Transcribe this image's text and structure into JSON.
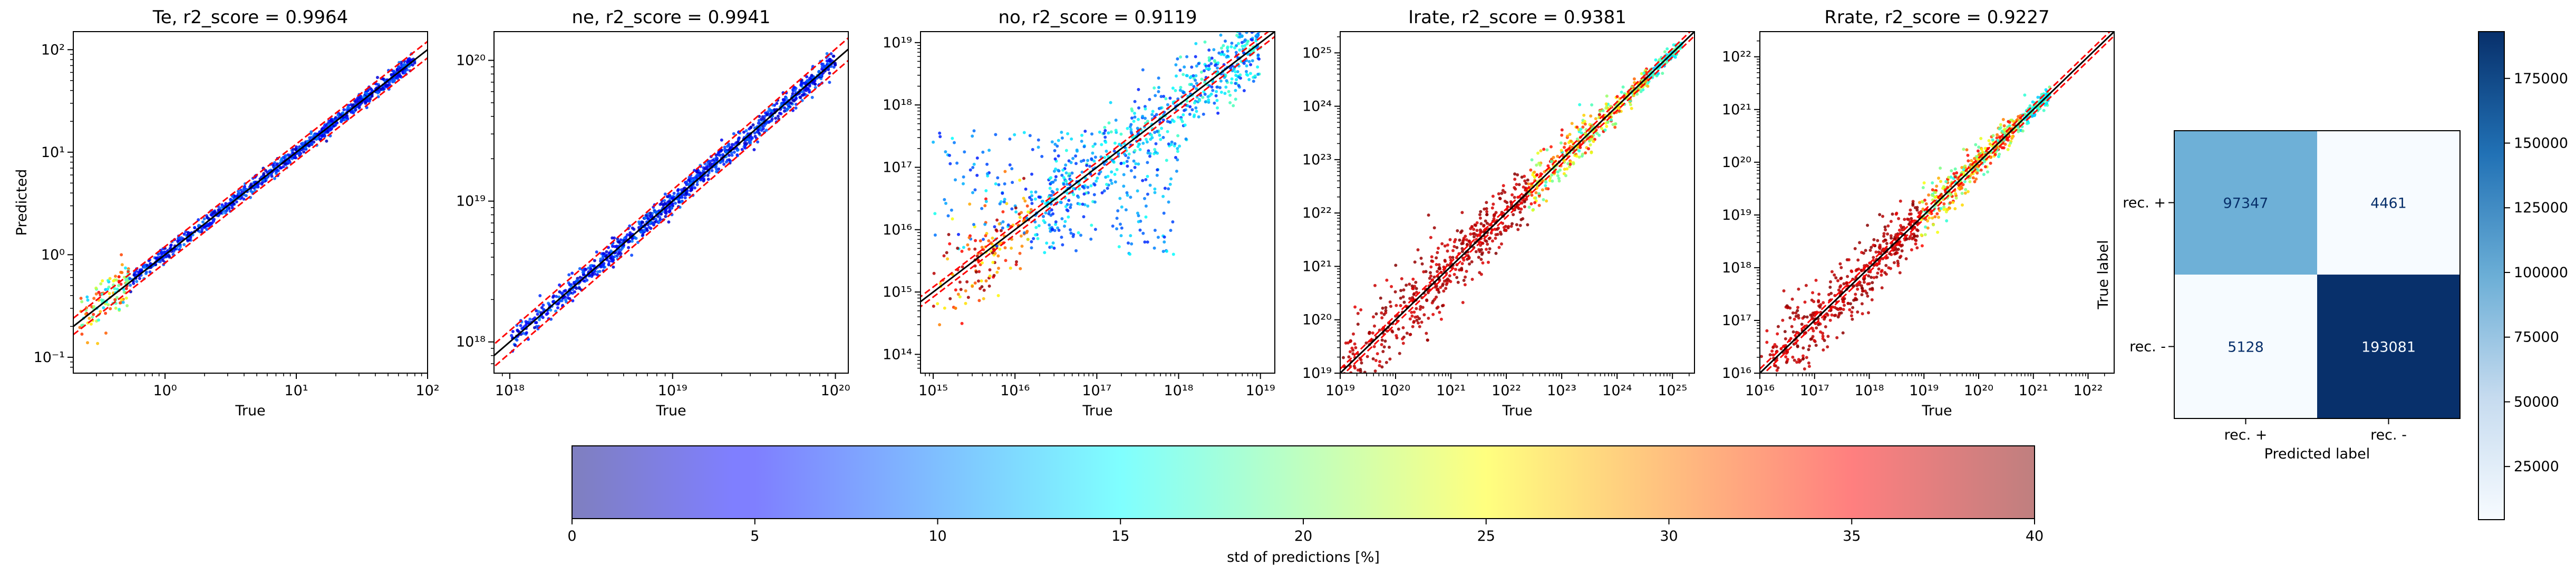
{
  "figure": {
    "colorbar_label": "std of predictions [%]",
    "colorbar_ticks": [
      "0",
      "5",
      "10",
      "15",
      "20",
      "25",
      "30",
      "35",
      "40"
    ],
    "colorbar_range": [
      0,
      40
    ],
    "colors": {
      "ideal_line": "#000000",
      "band_line": "#ff0000",
      "cmap": "jet (alpha 0.5)"
    }
  },
  "chart_data": [
    {
      "type": "scatter",
      "title": "Te, r2_score = 0.9964",
      "xlabel": "True",
      "ylabel": "Predicted",
      "xscale": "log",
      "yscale": "log",
      "xlim": [
        0.2,
        100
      ],
      "ylim": [
        0.07,
        150
      ],
      "xticks": [
        {
          "v": 1,
          "label": "10⁰"
        },
        {
          "v": 10,
          "label": "10¹"
        },
        {
          "v": 100,
          "label": "10²"
        }
      ],
      "yticks": [
        {
          "v": 0.1,
          "label": "10⁻¹"
        },
        {
          "v": 1,
          "label": "10⁰"
        },
        {
          "v": 10,
          "label": "10¹"
        },
        {
          "v": 100,
          "label": "10²"
        }
      ],
      "data_range": [
        0.22,
        80
      ],
      "spread_low": 0.07,
      "spread_high": 0.05,
      "noisy_tail": "low"
    },
    {
      "type": "scatter",
      "title": "ne, r2_score = 0.9941",
      "xlabel": "True",
      "ylabel": "",
      "xscale": "log",
      "yscale": "log",
      "xlim": [
        8e+17,
        1.2e+20
      ],
      "ylim": [
        6e+17,
        1.6e+20
      ],
      "xticks": [
        {
          "v": 1e+18,
          "label": "10¹⁸"
        },
        {
          "v": 1e+19,
          "label": "10¹⁹"
        },
        {
          "v": 1e+20,
          "label": "10²⁰"
        }
      ],
      "yticks": [
        {
          "v": 1e+18,
          "label": "10¹⁸"
        },
        {
          "v": 1e+19,
          "label": "10¹⁹"
        },
        {
          "v": 1e+20,
          "label": "10²⁰"
        }
      ],
      "data_range": [
        1e+18,
        1e+20
      ],
      "spread_low": 0.06,
      "spread_high": 0.08,
      "noisy_tail": "none"
    },
    {
      "type": "scatter",
      "title": "no, r2_score = 0.9119",
      "xlabel": "True",
      "ylabel": "",
      "xscale": "log",
      "yscale": "log",
      "xlim": [
        700000000000000.0,
        1.5e+19
      ],
      "ylim": [
        50000000000000.0,
        1.5e+19
      ],
      "xticks": [
        {
          "v": 1000000000000000.0,
          "label": "10¹⁵"
        },
        {
          "v": 1e+16,
          "label": "10¹⁶"
        },
        {
          "v": 1e+17,
          "label": "10¹⁷"
        },
        {
          "v": 1e+18,
          "label": "10¹⁸"
        },
        {
          "v": 1e+19,
          "label": "10¹⁹"
        }
      ],
      "yticks": [
        {
          "v": 100000000000000.0,
          "label": "10¹⁴"
        },
        {
          "v": 1000000000000000.0,
          "label": "10¹⁵"
        },
        {
          "v": 1e+16,
          "label": "10¹⁶"
        },
        {
          "v": 1e+17,
          "label": "10¹⁷"
        },
        {
          "v": 1e+18,
          "label": "10¹⁸"
        },
        {
          "v": 1e+19,
          "label": "10¹⁹"
        }
      ],
      "data_range": [
        1000000000000000.0,
        1e+19
      ],
      "spread_low": 0.9,
      "spread_high": 0.6,
      "noisy_tail": "low-plateau"
    },
    {
      "type": "scatter",
      "title": "Irate, r2_score = 0.9381",
      "xlabel": "True",
      "ylabel": "",
      "xscale": "log",
      "yscale": "log",
      "xlim": [
        1e+19,
        2.5e+25
      ],
      "ylim": [
        1e+19,
        2.5e+25
      ],
      "xticks": [
        {
          "v": 1e+19,
          "label": "10¹⁹"
        },
        {
          "v": 1e+20,
          "label": "10²⁰"
        },
        {
          "v": 1e+21,
          "label": "10²¹"
        },
        {
          "v": 1e+22,
          "label": "10²²"
        },
        {
          "v": 1e+23,
          "label": "10²³"
        },
        {
          "v": 1e+24,
          "label": "10²⁴"
        },
        {
          "v": 1e+25,
          "label": "10²⁵"
        }
      ],
      "yticks": [
        {
          "v": 1e+19,
          "label": "10¹⁹"
        },
        {
          "v": 1e+20,
          "label": "10²⁰"
        },
        {
          "v": 1e+21,
          "label": "10²¹"
        },
        {
          "v": 1e+22,
          "label": "10²²"
        },
        {
          "v": 1e+23,
          "label": "10²³"
        },
        {
          "v": 1e+24,
          "label": "10²⁴"
        },
        {
          "v": 1e+25,
          "label": "10²⁵"
        }
      ],
      "data_range": [
        1e+19,
        1.5e+25
      ],
      "spread_low": 1.1,
      "spread_high": 0.12,
      "noisy_tail": "low-wide"
    },
    {
      "type": "scatter",
      "title": "Rrate, r2_score = 0.9227",
      "xlabel": "True",
      "ylabel": "",
      "xscale": "log",
      "yscale": "log",
      "xlim": [
        1e+16,
        3e+22
      ],
      "ylim": [
        1e+16,
        3e+22
      ],
      "xticks": [
        {
          "v": 1e+16,
          "label": "10¹⁶"
        },
        {
          "v": 1e+17,
          "label": "10¹⁷"
        },
        {
          "v": 1e+18,
          "label": "10¹⁸"
        },
        {
          "v": 1e+19,
          "label": "10¹⁹"
        },
        {
          "v": 1e+20,
          "label": "10²⁰"
        },
        {
          "v": 1e+21,
          "label": "10²¹"
        },
        {
          "v": 1e+22,
          "label": "10²²"
        }
      ],
      "yticks": [
        {
          "v": 1e+16,
          "label": "10¹⁶"
        },
        {
          "v": 1e+17,
          "label": "10¹⁷"
        },
        {
          "v": 1e+18,
          "label": "10¹⁸"
        },
        {
          "v": 1e+19,
          "label": "10¹⁹"
        },
        {
          "v": 1e+20,
          "label": "10²⁰"
        },
        {
          "v": 1e+21,
          "label": "10²¹"
        },
        {
          "v": 1e+22,
          "label": "10²²"
        }
      ],
      "data_range": [
        1e+16,
        2e+21
      ],
      "spread_low": 1.0,
      "spread_high": 0.15,
      "noisy_tail": "low-wide"
    },
    {
      "type": "heatmap",
      "title": "",
      "xlabel": "Predicted label",
      "ylabel": "True label",
      "x_categories": [
        "rec. +",
        "rec. -"
      ],
      "y_categories": [
        "rec. +",
        "rec. -"
      ],
      "values": [
        [
          97347,
          4461
        ],
        [
          5128,
          193081
        ]
      ],
      "cmap": "Blues",
      "colorbar_range": [
        4461,
        193081
      ],
      "colorbar_ticks": [
        25000,
        50000,
        75000,
        100000,
        125000,
        150000,
        175000
      ]
    }
  ]
}
